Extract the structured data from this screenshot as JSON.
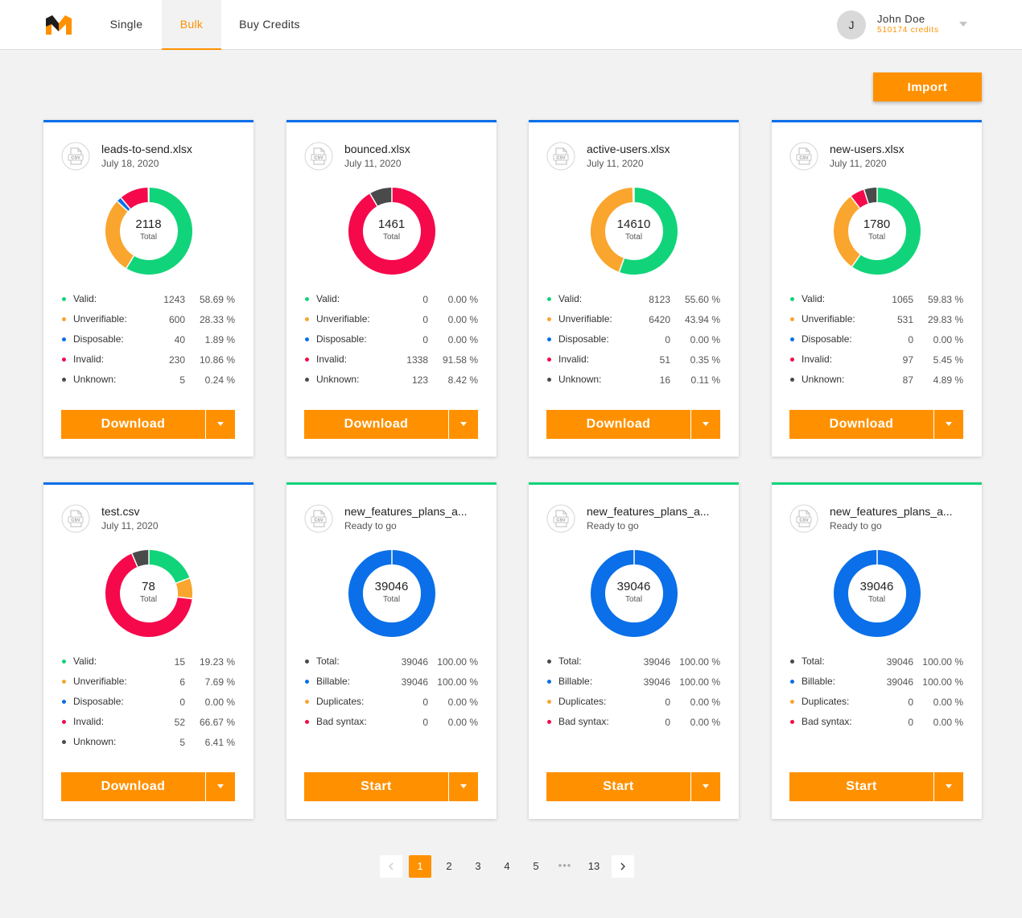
{
  "header": {
    "tabs": [
      "Single",
      "Bulk",
      "Buy Credits"
    ],
    "active_tab": "Bulk",
    "user": {
      "initial": "J",
      "name": "John Doe",
      "credits": "510174 credits"
    }
  },
  "import_label": "Import",
  "colors": {
    "accent": "#ff9100",
    "valid": "#11d47a",
    "unverifiable": "#f9a52e",
    "disposable": "#0a6fe8",
    "invalid": "#f5094b",
    "unknown": "#4a4a4a",
    "card_top_done": "#0a6fe8",
    "card_top_ready": "#11d47a"
  },
  "cards": [
    {
      "file": "leads-to-send.xlsx",
      "subtitle": "July 18, 2020",
      "total": "2118",
      "total_label": "Total",
      "rows": [
        {
          "label": "Valid:",
          "count": "1243",
          "pct": "58.69 %",
          "color": "#11d47a"
        },
        {
          "label": "Unverifiable:",
          "count": "600",
          "pct": "28.33 %",
          "color": "#f9a52e"
        },
        {
          "label": "Disposable:",
          "count": "40",
          "pct": "1.89 %",
          "color": "#0a6fe8"
        },
        {
          "label": "Invalid:",
          "count": "230",
          "pct": "10.86 %",
          "color": "#f5094b"
        },
        {
          "label": "Unknown:",
          "count": "5",
          "pct": "0.24 %",
          "color": "#4a4a4a"
        }
      ],
      "action": "Download"
    },
    {
      "file": "bounced.xlsx",
      "subtitle": "July 11, 2020",
      "total": "1461",
      "total_label": "Total",
      "rows": [
        {
          "label": "Valid:",
          "count": "0",
          "pct": "0.00 %",
          "color": "#11d47a"
        },
        {
          "label": "Unverifiable:",
          "count": "0",
          "pct": "0.00 %",
          "color": "#f9a52e"
        },
        {
          "label": "Disposable:",
          "count": "0",
          "pct": "0.00 %",
          "color": "#0a6fe8"
        },
        {
          "label": "Invalid:",
          "count": "1338",
          "pct": "91.58 %",
          "color": "#f5094b"
        },
        {
          "label": "Unknown:",
          "count": "123",
          "pct": "8.42 %",
          "color": "#4a4a4a"
        }
      ],
      "action": "Download"
    },
    {
      "file": "active-users.xlsx",
      "subtitle": "July 11, 2020",
      "total": "14610",
      "total_label": "Total",
      "rows": [
        {
          "label": "Valid:",
          "count": "8123",
          "pct": "55.60 %",
          "color": "#11d47a"
        },
        {
          "label": "Unverifiable:",
          "count": "6420",
          "pct": "43.94 %",
          "color": "#f9a52e"
        },
        {
          "label": "Disposable:",
          "count": "0",
          "pct": "0.00 %",
          "color": "#0a6fe8"
        },
        {
          "label": "Invalid:",
          "count": "51",
          "pct": "0.35 %",
          "color": "#f5094b"
        },
        {
          "label": "Unknown:",
          "count": "16",
          "pct": "0.11 %",
          "color": "#4a4a4a"
        }
      ],
      "action": "Download"
    },
    {
      "file": "new-users.xlsx",
      "subtitle": "July 11, 2020",
      "total": "1780",
      "total_label": "Total",
      "rows": [
        {
          "label": "Valid:",
          "count": "1065",
          "pct": "59.83 %",
          "color": "#11d47a"
        },
        {
          "label": "Unverifiable:",
          "count": "531",
          "pct": "29.83 %",
          "color": "#f9a52e"
        },
        {
          "label": "Disposable:",
          "count": "0",
          "pct": "0.00 %",
          "color": "#0a6fe8"
        },
        {
          "label": "Invalid:",
          "count": "97",
          "pct": "5.45 %",
          "color": "#f5094b"
        },
        {
          "label": "Unknown:",
          "count": "87",
          "pct": "4.89 %",
          "color": "#4a4a4a"
        }
      ],
      "action": "Download"
    },
    {
      "file": "test.csv",
      "subtitle": "July 11, 2020",
      "total": "78",
      "total_label": "Total",
      "rows": [
        {
          "label": "Valid:",
          "count": "15",
          "pct": "19.23 %",
          "color": "#11d47a"
        },
        {
          "label": "Unverifiable:",
          "count": "6",
          "pct": "7.69 %",
          "color": "#f9a52e"
        },
        {
          "label": "Disposable:",
          "count": "0",
          "pct": "0.00 %",
          "color": "#0a6fe8"
        },
        {
          "label": "Invalid:",
          "count": "52",
          "pct": "66.67 %",
          "color": "#f5094b"
        },
        {
          "label": "Unknown:",
          "count": "5",
          "pct": "6.41 %",
          "color": "#4a4a4a"
        }
      ],
      "action": "Download"
    },
    {
      "file": "new_features_plans_a...",
      "subtitle": "Ready to go",
      "total": "39046",
      "total_label": "Total",
      "rows": [
        {
          "label": "Total:",
          "count": "39046",
          "pct": "100.00 %",
          "color": "#4a4a4a"
        },
        {
          "label": "Billable:",
          "count": "39046",
          "pct": "100.00 %",
          "color": "#0a6fe8"
        },
        {
          "label": "Duplicates:",
          "count": "0",
          "pct": "0.00 %",
          "color": "#f9a52e"
        },
        {
          "label": "Bad syntax:",
          "count": "0",
          "pct": "0.00 %",
          "color": "#f5094b"
        }
      ],
      "action": "Start"
    },
    {
      "file": "new_features_plans_a...",
      "subtitle": "Ready to go",
      "total": "39046",
      "total_label": "Total",
      "rows": [
        {
          "label": "Total:",
          "count": "39046",
          "pct": "100.00 %",
          "color": "#4a4a4a"
        },
        {
          "label": "Billable:",
          "count": "39046",
          "pct": "100.00 %",
          "color": "#0a6fe8"
        },
        {
          "label": "Duplicates:",
          "count": "0",
          "pct": "0.00 %",
          "color": "#f9a52e"
        },
        {
          "label": "Bad syntax:",
          "count": "0",
          "pct": "0.00 %",
          "color": "#f5094b"
        }
      ],
      "action": "Start"
    },
    {
      "file": "new_features_plans_a...",
      "subtitle": "Ready to go",
      "total": "39046",
      "total_label": "Total",
      "rows": [
        {
          "label": "Total:",
          "count": "39046",
          "pct": "100.00 %",
          "color": "#4a4a4a"
        },
        {
          "label": "Billable:",
          "count": "39046",
          "pct": "100.00 %",
          "color": "#0a6fe8"
        },
        {
          "label": "Duplicates:",
          "count": "0",
          "pct": "0.00 %",
          "color": "#f9a52e"
        },
        {
          "label": "Bad syntax:",
          "count": "0",
          "pct": "0.00 %",
          "color": "#f5094b"
        }
      ],
      "action": "Start"
    }
  ],
  "pagination": {
    "prev_icon": "chevron-left-icon",
    "next_icon": "chevron-right-icon",
    "pages": [
      "1",
      "2",
      "3",
      "4",
      "5",
      "13"
    ],
    "ellipsis": "•••",
    "current": "1"
  }
}
